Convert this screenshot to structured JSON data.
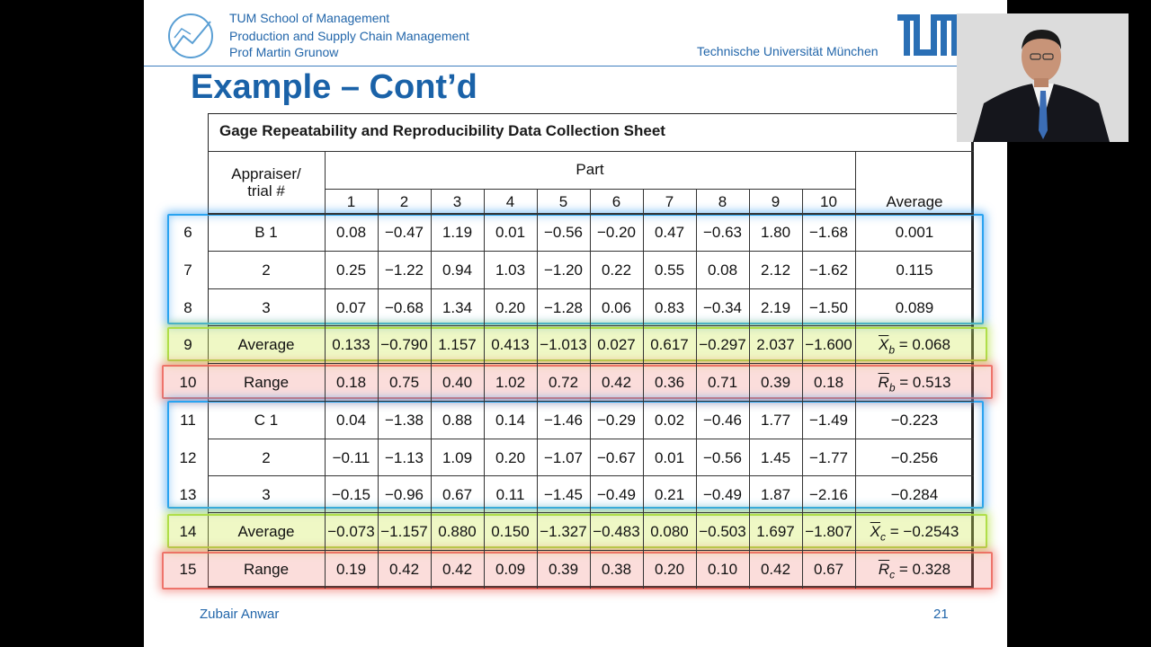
{
  "header": {
    "lines": [
      "TUM School of Management",
      "Production and Supply Chain Management",
      "Prof Martin Grunow"
    ],
    "university": "Technische Universität München"
  },
  "slide": {
    "title": "Example – Cont’d",
    "sheet_title": "Gage Repeatability and Reproducibility Data Collection Sheet"
  },
  "table": {
    "col_header_appraiser": "Appraiser/ trial #",
    "col_header_part": "Part",
    "parts": [
      "1",
      "2",
      "3",
      "4",
      "5",
      "6",
      "7",
      "8",
      "9",
      "10"
    ],
    "col_header_average": "Average",
    "rows": [
      {
        "num": "6",
        "label": "B  1",
        "values": [
          "0.08",
          "−0.47",
          "1.19",
          "0.01",
          "−0.56",
          "−0.20",
          "0.47",
          "−0.63",
          "1.80",
          "−1.68"
        ],
        "avg": "0.001"
      },
      {
        "num": "7",
        "label": "2",
        "values": [
          "0.25",
          "−1.22",
          "0.94",
          "1.03",
          "−1.20",
          "0.22",
          "0.55",
          "0.08",
          "2.12",
          "−1.62"
        ],
        "avg": "0.115"
      },
      {
        "num": "8",
        "label": "3",
        "values": [
          "0.07",
          "−0.68",
          "1.34",
          "0.20",
          "−1.28",
          "0.06",
          "0.83",
          "−0.34",
          "2.19",
          "−1.50"
        ],
        "avg": "0.089"
      },
      {
        "num": "9",
        "label": "Average",
        "values": [
          "0.133",
          "−0.790",
          "1.157",
          "0.413",
          "−1.013",
          "0.027",
          "0.617",
          "−0.297",
          "2.037",
          "−1.600"
        ],
        "avg_sym": "X",
        "avg_sub": "b",
        "avg_val": "= 0.068"
      },
      {
        "num": "10",
        "label": "Range",
        "values": [
          "0.18",
          "0.75",
          "0.40",
          "1.02",
          "0.72",
          "0.42",
          "0.36",
          "0.71",
          "0.39",
          "0.18"
        ],
        "avg_sym": "R",
        "avg_sub": "b",
        "avg_val": "= 0.513"
      },
      {
        "num": "11",
        "label": "C  1",
        "values": [
          "0.04",
          "−1.38",
          "0.88",
          "0.14",
          "−1.46",
          "−0.29",
          "0.02",
          "−0.46",
          "1.77",
          "−1.49"
        ],
        "avg": "−0.223"
      },
      {
        "num": "12",
        "label": "2",
        "values": [
          "−0.11",
          "−1.13",
          "1.09",
          "0.20",
          "−1.07",
          "−0.67",
          "0.01",
          "−0.56",
          "1.45",
          "−1.77"
        ],
        "avg": "−0.256"
      },
      {
        "num": "13",
        "label": "3",
        "values": [
          "−0.15",
          "−0.96",
          "0.67",
          "0.11",
          "−1.45",
          "−0.49",
          "0.21",
          "−0.49",
          "1.87",
          "−2.16"
        ],
        "avg": "−0.284"
      },
      {
        "num": "14",
        "label": "Average",
        "values": [
          "−0.073",
          "−1.157",
          "0.880",
          "0.150",
          "−1.327",
          "−0.483",
          "0.080",
          "−0.503",
          "1.697",
          "−1.807"
        ],
        "avg_sym": "X",
        "avg_sub": "c",
        "avg_val": "= −0.2543"
      },
      {
        "num": "15",
        "label": "Range",
        "values": [
          "0.19",
          "0.42",
          "0.42",
          "0.09",
          "0.39",
          "0.38",
          "0.20",
          "0.10",
          "0.42",
          "0.67"
        ],
        "avg_sym": "R",
        "avg_sub": "c",
        "avg_val": "= 0.328"
      }
    ]
  },
  "footer": {
    "presenter": "Zubair Anwar",
    "page": "21"
  },
  "colors": {
    "brand_blue": "#1a62a8",
    "highlight_blue": "#2aa3f0",
    "highlight_green": "#b4e13c",
    "highlight_red": "#eb5a50"
  },
  "webcam": {
    "icon": "presenter-video-feed"
  }
}
